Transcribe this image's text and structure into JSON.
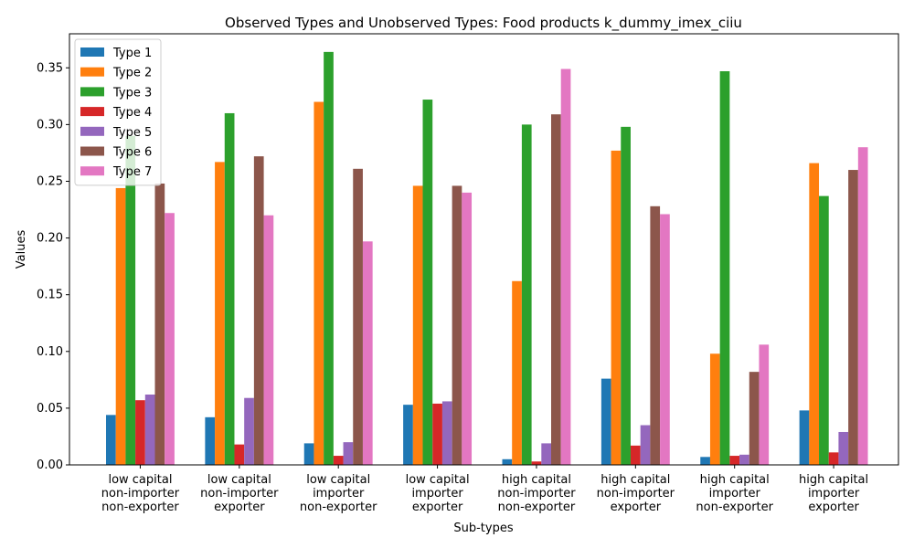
{
  "chart_data": {
    "type": "bar",
    "title": "Observed Types and Unobserved Types: Food products k_dummy_imex_ciiu",
    "xlabel": "Sub-types",
    "ylabel": "Values",
    "ylim": [
      0,
      0.38
    ],
    "yticks": [
      0.0,
      0.05,
      0.1,
      0.15,
      0.2,
      0.25,
      0.3,
      0.35
    ],
    "ytick_labels": [
      "0.00",
      "0.05",
      "0.10",
      "0.15",
      "0.20",
      "0.25",
      "0.30",
      "0.35"
    ],
    "grid": false,
    "legend_position": "top-left",
    "categories": [
      [
        "low capital",
        "non-importer",
        "non-exporter"
      ],
      [
        "low capital",
        "non-importer",
        "exporter"
      ],
      [
        "low capital",
        "importer",
        "non-exporter"
      ],
      [
        "low capital",
        "importer",
        "exporter"
      ],
      [
        "high capital",
        "non-importer",
        "non-exporter"
      ],
      [
        "high capital",
        "non-importer",
        "exporter"
      ],
      [
        "high capital",
        "importer",
        "non-exporter"
      ],
      [
        "high capital",
        "importer",
        "exporter"
      ]
    ],
    "series": [
      {
        "name": "Type 1",
        "color": "#1f77b4",
        "values": [
          0.044,
          0.042,
          0.019,
          0.053,
          0.005,
          0.076,
          0.007,
          0.048
        ]
      },
      {
        "name": "Type 2",
        "color": "#ff7f0e",
        "values": [
          0.244,
          0.267,
          0.32,
          0.246,
          0.162,
          0.277,
          0.098,
          0.266
        ]
      },
      {
        "name": "Type 3",
        "color": "#2ca02c",
        "values": [
          0.29,
          0.31,
          0.364,
          0.322,
          0.3,
          0.298,
          0.347,
          0.237
        ]
      },
      {
        "name": "Type 4",
        "color": "#d62728",
        "values": [
          0.057,
          0.018,
          0.008,
          0.054,
          0.003,
          0.017,
          0.008,
          0.011
        ]
      },
      {
        "name": "Type 5",
        "color": "#9467bd",
        "values": [
          0.062,
          0.059,
          0.02,
          0.056,
          0.019,
          0.035,
          0.009,
          0.029
        ]
      },
      {
        "name": "Type 6",
        "color": "#8c564b",
        "values": [
          0.248,
          0.272,
          0.261,
          0.246,
          0.309,
          0.228,
          0.082,
          0.26
        ]
      },
      {
        "name": "Type 7",
        "color": "#e377c2",
        "values": [
          0.222,
          0.22,
          0.197,
          0.24,
          0.349,
          0.221,
          0.106,
          0.28
        ]
      }
    ]
  }
}
